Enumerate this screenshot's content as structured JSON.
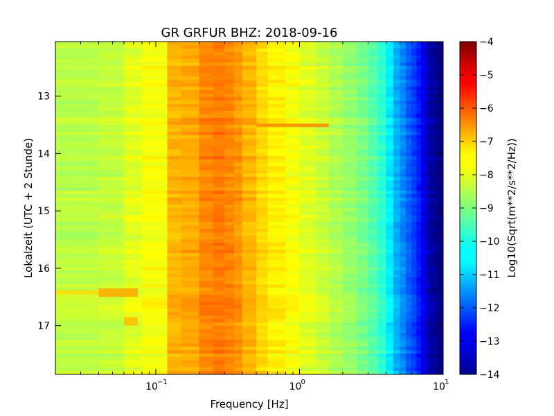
{
  "chart_data": {
    "type": "heatmap",
    "title": "GR GRFUR BHZ: 2018-09-16",
    "xlabel": "Frequency [Hz]",
    "ylabel": "Lokalzeit (UTC + 2 Stunde)",
    "colorbar_label": "Log10(Sqrt(m**2/s**2/Hz))",
    "x_scale": "log",
    "xlim": [
      0.02,
      10
    ],
    "ylim": [
      17.85,
      12.05
    ],
    "y_inverted": true,
    "clim": [
      -14,
      -4
    ],
    "colormap": "jet",
    "x_ticks": [
      {
        "value": 0.1,
        "base": "10",
        "exp": "-1"
      },
      {
        "value": 1,
        "base": "10",
        "exp": "0"
      },
      {
        "value": 10,
        "base": "10",
        "exp": "1"
      }
    ],
    "y_ticks": [
      {
        "value": 13,
        "label": "13"
      },
      {
        "value": 14,
        "label": "14"
      },
      {
        "value": 15,
        "label": "15"
      },
      {
        "value": 16,
        "label": "16"
      },
      {
        "value": 17,
        "label": "17"
      }
    ],
    "colorbar_ticks": [
      {
        "value": -4,
        "label": "−4"
      },
      {
        "value": -5,
        "label": "−5"
      },
      {
        "value": -6,
        "label": "−6"
      },
      {
        "value": -7,
        "label": "−7"
      },
      {
        "value": -8,
        "label": "−8"
      },
      {
        "value": -9,
        "label": "−9"
      },
      {
        "value": -10,
        "label": "−10"
      },
      {
        "value": -11,
        "label": "−11"
      },
      {
        "value": -12,
        "label": "−12"
      },
      {
        "value": -13,
        "label": "−13"
      },
      {
        "value": -14,
        "label": "−14"
      }
    ],
    "frequency_bins": [
      {
        "f_min": 0.02,
        "f_max": 0.04,
        "value": -8.4
      },
      {
        "f_min": 0.04,
        "f_max": 0.06,
        "value": -8.3
      },
      {
        "f_min": 0.06,
        "f_max": 0.08,
        "value": -8.0
      },
      {
        "f_min": 0.08,
        "f_max": 0.12,
        "value": -7.8
      },
      {
        "f_min": 0.12,
        "f_max": 0.15,
        "value": -7.0
      },
      {
        "f_min": 0.15,
        "f_max": 0.2,
        "value": -6.9
      },
      {
        "f_min": 0.2,
        "f_max": 0.25,
        "value": -6.55
      },
      {
        "f_min": 0.25,
        "f_max": 0.3,
        "value": -6.45
      },
      {
        "f_min": 0.3,
        "f_max": 0.35,
        "value": -6.55
      },
      {
        "f_min": 0.35,
        "f_max": 0.4,
        "value": -6.7
      },
      {
        "f_min": 0.4,
        "f_max": 0.5,
        "value": -7.0
      },
      {
        "f_min": 0.5,
        "f_max": 0.6,
        "value": -7.35
      },
      {
        "f_min": 0.6,
        "f_max": 0.8,
        "value": -7.6
      },
      {
        "f_min": 0.8,
        "f_max": 1.0,
        "value": -7.8
      },
      {
        "f_min": 1.0,
        "f_max": 1.3,
        "value": -8.05
      },
      {
        "f_min": 1.3,
        "f_max": 1.6,
        "value": -8.25
      },
      {
        "f_min": 1.6,
        "f_max": 2.0,
        "value": -8.5
      },
      {
        "f_min": 2.0,
        "f_max": 2.5,
        "value": -8.75
      },
      {
        "f_min": 2.5,
        "f_max": 3.0,
        "value": -9.05
      },
      {
        "f_min": 3.0,
        "f_max": 3.5,
        "value": -9.4
      },
      {
        "f_min": 3.5,
        "f_max": 4.0,
        "value": -9.8
      },
      {
        "f_min": 4.0,
        "f_max": 4.5,
        "value": -10.4
      },
      {
        "f_min": 4.5,
        "f_max": 5.0,
        "value": -11.0
      },
      {
        "f_min": 5.0,
        "f_max": 5.5,
        "value": -11.4
      },
      {
        "f_min": 5.5,
        "f_max": 6.0,
        "value": -11.8
      },
      {
        "f_min": 6.0,
        "f_max": 6.5,
        "value": -12.1
      },
      {
        "f_min": 6.5,
        "f_max": 7.0,
        "value": -12.5
      },
      {
        "f_min": 7.0,
        "f_max": 7.5,
        "value": -12.9
      },
      {
        "f_min": 7.5,
        "f_max": 8.0,
        "value": -13.3
      },
      {
        "f_min": 8.0,
        "f_max": 9.0,
        "value": -13.7
      },
      {
        "f_min": 9.0,
        "f_max": 10.0,
        "value": -14.0
      }
    ],
    "annotations": [
      {
        "f_min": 0.5,
        "f_max": 1.6,
        "t_start": 13.48,
        "t_end": 13.54,
        "value": -6.6
      },
      {
        "f_min": 0.04,
        "f_max": 0.075,
        "t_start": 16.35,
        "t_end": 16.5,
        "value": -6.9
      },
      {
        "f_min": 0.06,
        "f_max": 0.075,
        "t_start": 16.85,
        "t_end": 17.0,
        "value": -7.1
      },
      {
        "f_min": 0.02,
        "f_max": 0.04,
        "t_start": 16.38,
        "t_end": 16.46,
        "value": -7.4
      }
    ]
  }
}
